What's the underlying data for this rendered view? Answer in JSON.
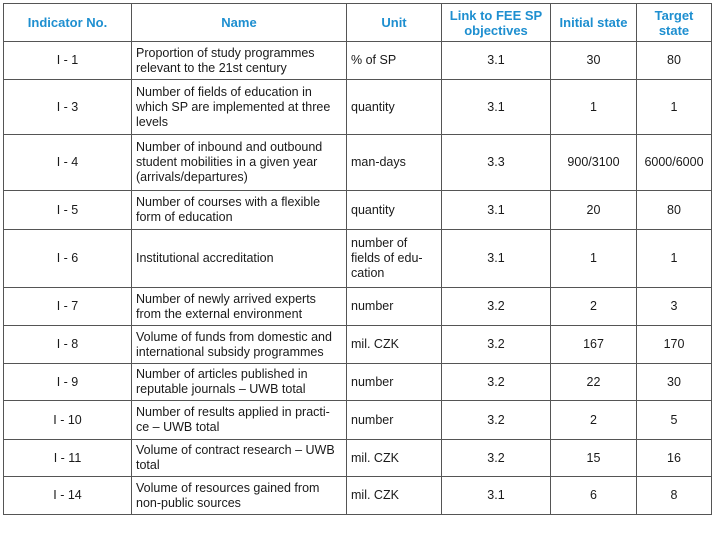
{
  "headers": {
    "indicator": "Indicator No.",
    "name": "Name",
    "unit": "Unit",
    "link": "Link to FEE SP objectives",
    "initial": "Initial state",
    "target": "Target state"
  },
  "rows": [
    {
      "id": "I - 1",
      "name": "Proportion of study programmes relevant to the 21st century",
      "unit": "% of SP",
      "link": "3.1",
      "initial": "30",
      "target": "80"
    },
    {
      "id": "I - 3",
      "name": "Number of fields of education in which SP are implemented at three levels",
      "unit": "quantity",
      "link": "3.1",
      "initial": "1",
      "target": "1"
    },
    {
      "id": "I - 4",
      "name": "Number of inbound and outbound student mobilities in a given year (arrivals/departures)",
      "unit": "man-days",
      "link": "3.3",
      "initial": "900/3100",
      "target": "6000/6000"
    },
    {
      "id": "I - 5",
      "name": "Number of courses with a flexible form of education",
      "unit": "quantity",
      "link": "3.1",
      "initial": "20",
      "target": "80"
    },
    {
      "id": "I - 6",
      "name": "Institutional accreditation",
      "unit": "number of fields of edu-cation",
      "link": "3.1",
      "initial": "1",
      "target": "1"
    },
    {
      "id": "I - 7",
      "name": "Number of newly arrived experts from the external environment",
      "unit": "number",
      "link": "3.2",
      "initial": "2",
      "target": "3"
    },
    {
      "id": "I - 8",
      "name": "Volume of funds from domestic and international subsidy programmes",
      "unit": "mil. CZK",
      "link": "3.2",
      "initial": "167",
      "target": "170"
    },
    {
      "id": "I - 9",
      "name": "Number of articles published in reputable journals – UWB total",
      "unit": "number",
      "link": "3.2",
      "initial": "22",
      "target": "30"
    },
    {
      "id": "I - 10",
      "name": "Number of results applied in practi-ce – UWB total",
      "unit": "number",
      "link": "3.2",
      "initial": "2",
      "target": "5"
    },
    {
      "id": "I - 11",
      "name": "Volume of contract research – UWB total",
      "unit": "mil. CZK",
      "link": "3.2",
      "initial": "15",
      "target": "16"
    },
    {
      "id": "I - 14",
      "name": "Volume of resources gained from non-public sources",
      "unit": "mil. CZK",
      "link": "3.1",
      "initial": "6",
      "target": "8"
    }
  ]
}
